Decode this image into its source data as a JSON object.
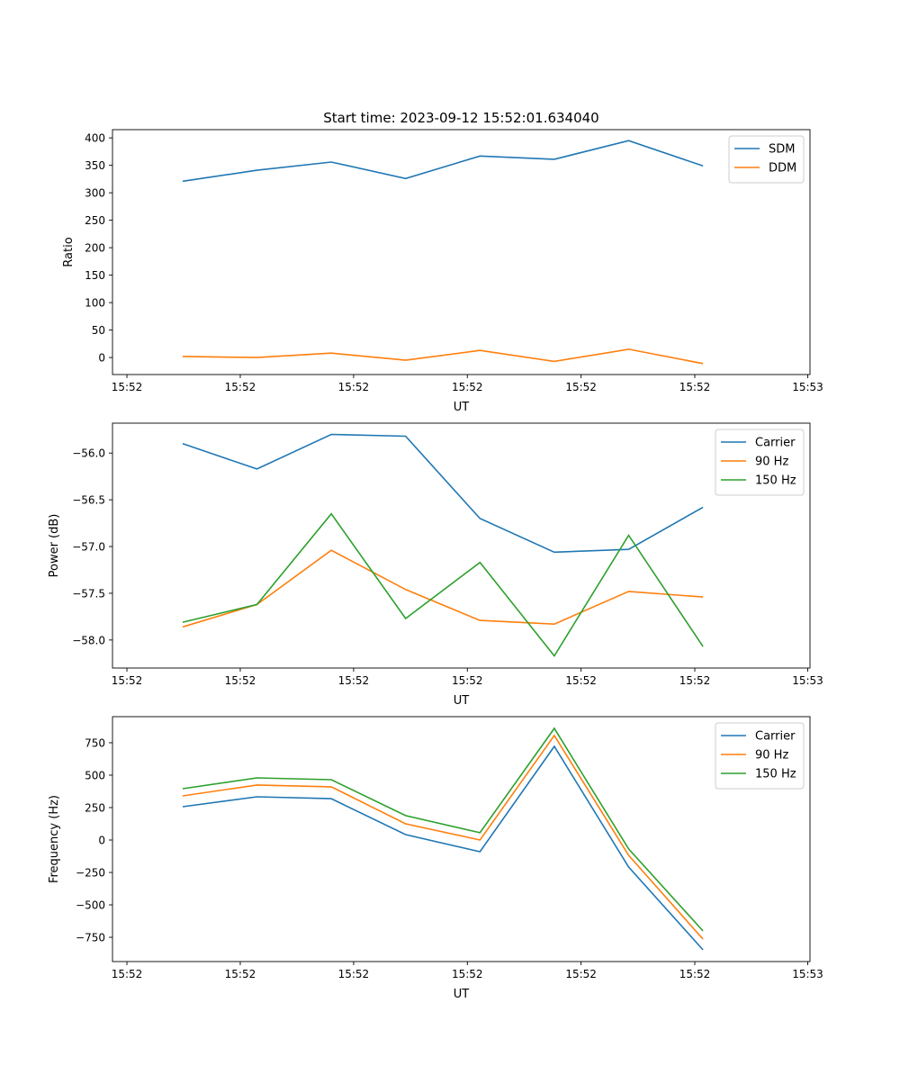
{
  "colors": {
    "c0": "#1f77b4",
    "c1": "#ff7f0e",
    "c2": "#2ca02c"
  },
  "chart_data": [
    {
      "type": "line",
      "title": "Start time: 2023-09-12 15:52:01.634040",
      "xlabel": "UT",
      "ylabel": "Ratio",
      "x": [
        0,
        1,
        2,
        3,
        4,
        5,
        6,
        7
      ],
      "xlim": [
        -0.944,
        8.44
      ],
      "xticks": [
        -0.75,
        0.775,
        2.3,
        3.83,
        5.36,
        6.89,
        8.41
      ],
      "xtick_labels": [
        "15:52",
        "15:52",
        "15:52",
        "15:52",
        "15:52",
        "15:52",
        "15:53"
      ],
      "ylim": [
        -31,
        415
      ],
      "yticks": [
        0,
        50,
        100,
        150,
        200,
        250,
        300,
        350,
        400
      ],
      "ytick_labels": [
        "0",
        "50",
        "100",
        "150",
        "200",
        "250",
        "300",
        "350",
        "400"
      ],
      "legend": "top-right",
      "series": [
        {
          "name": "SDM",
          "color": "#1f77b4",
          "values": [
            321,
            341,
            356,
            326,
            367,
            361,
            395,
            349
          ]
        },
        {
          "name": "DDM",
          "color": "#ff7f0e",
          "values": [
            2,
            0,
            8,
            -5,
            13,
            -7,
            15,
            -11
          ]
        }
      ]
    },
    {
      "type": "line",
      "title": "",
      "xlabel": "UT",
      "ylabel": "Power (dB)",
      "x": [
        0,
        1,
        2,
        3,
        4,
        5,
        6,
        7
      ],
      "xlim": [
        -0.944,
        8.44
      ],
      "xticks": [
        -0.75,
        0.775,
        2.3,
        3.83,
        5.36,
        6.89,
        8.41
      ],
      "xtick_labels": [
        "15:52",
        "15:52",
        "15:52",
        "15:52",
        "15:52",
        "15:52",
        "15:53"
      ],
      "ylim": [
        -58.3,
        -55.68
      ],
      "yticks": [
        -58.0,
        -57.5,
        -57.0,
        -56.5,
        -56.0
      ],
      "ytick_labels": [
        "−58.0",
        "−57.5",
        "−57.0",
        "−56.5",
        "−56.0"
      ],
      "legend": "top-right",
      "series": [
        {
          "name": "Carrier",
          "color": "#1f77b4",
          "values": [
            -55.9,
            -56.17,
            -55.8,
            -55.82,
            -56.7,
            -57.06,
            -57.03,
            -56.58
          ]
        },
        {
          "name": "90 Hz",
          "color": "#ff7f0e",
          "values": [
            -57.86,
            -57.62,
            -57.04,
            -57.46,
            -57.79,
            -57.83,
            -57.48,
            -57.54
          ]
        },
        {
          "name": "150 Hz",
          "color": "#2ca02c",
          "values": [
            -57.81,
            -57.62,
            -56.65,
            -57.77,
            -57.17,
            -58.17,
            -56.88,
            -58.07
          ]
        }
      ]
    },
    {
      "type": "line",
      "title": "",
      "xlabel": "UT",
      "ylabel": "Frequency (Hz)",
      "x": [
        0,
        1,
        2,
        3,
        4,
        5,
        6,
        7
      ],
      "xlim": [
        -0.944,
        8.44
      ],
      "xticks": [
        -0.75,
        0.775,
        2.3,
        3.83,
        5.36,
        6.89,
        8.41
      ],
      "xtick_labels": [
        "15:52",
        "15:52",
        "15:52",
        "15:52",
        "15:52",
        "15:52",
        "15:53"
      ],
      "ylim": [
        -937,
        951
      ],
      "yticks": [
        -750,
        -500,
        -250,
        0,
        250,
        500,
        750
      ],
      "ytick_labels": [
        "−750",
        "−500",
        "−250",
        "0",
        "250",
        "500",
        "750"
      ],
      "legend": "top-right",
      "series": [
        {
          "name": "Carrier",
          "color": "#1f77b4",
          "values": [
            257,
            333,
            319,
            42,
            -90,
            722,
            -208,
            -847
          ]
        },
        {
          "name": "90 Hz",
          "color": "#ff7f0e",
          "values": [
            340,
            424,
            410,
            125,
            0,
            806,
            -118,
            -764
          ]
        },
        {
          "name": "150 Hz",
          "color": "#2ca02c",
          "values": [
            396,
            479,
            465,
            188,
            56,
            861,
            -69,
            -701
          ]
        }
      ]
    }
  ]
}
